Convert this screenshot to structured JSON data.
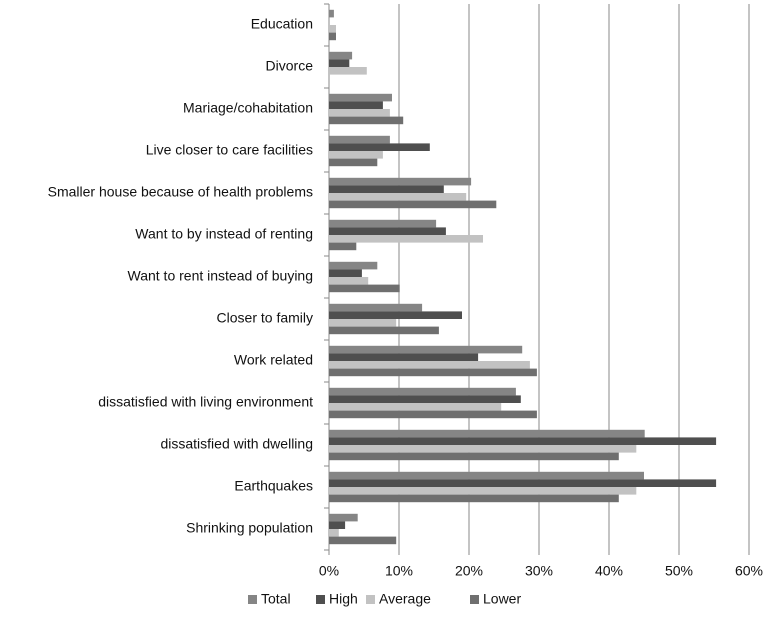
{
  "chart_data": {
    "type": "hbar",
    "categories": [
      "Education",
      "Divorce",
      "Mariage/cohabitation",
      "Live closer to care facilities",
      "Smaller house because of health problems",
      "Want to by instead of renting",
      "Want to rent instead of buying",
      "Closer to family",
      "Work related",
      "dissatisfied with living environment",
      "dissatisfied with dwelling",
      "Earthquakes",
      "Shrinking population"
    ],
    "series": [
      {
        "name": "Total",
        "color": "#858585",
        "values": [
          0.7,
          3.3,
          9.0,
          8.7,
          20.3,
          15.3,
          6.9,
          13.3,
          27.6,
          26.7,
          45.1,
          45.0,
          4.1
        ]
      },
      {
        "name": "High",
        "color": "#4f4f4f",
        "values": [
          0,
          2.9,
          7.7,
          14.4,
          16.4,
          16.7,
          4.7,
          19.0,
          21.3,
          27.4,
          55.3,
          55.3,
          2.3
        ]
      },
      {
        "name": "Average",
        "color": "#c2c2c2",
        "values": [
          1.0,
          5.4,
          8.7,
          7.7,
          19.6,
          22.0,
          5.6,
          9.6,
          28.7,
          24.6,
          43.9,
          43.9,
          1.4
        ]
      },
      {
        "name": "Lower",
        "color": "#6f6f6f",
        "values": [
          1.0,
          0,
          10.6,
          6.9,
          23.9,
          3.9,
          10.1,
          15.7,
          29.7,
          29.7,
          41.4,
          41.4,
          9.6
        ]
      }
    ],
    "xlim": [
      0,
      60
    ],
    "xticks": [
      {
        "value": 0,
        "label": "0%"
      },
      {
        "value": 10,
        "label": "10%"
      },
      {
        "value": 20,
        "label": "20%"
      },
      {
        "value": 30,
        "label": "30%"
      },
      {
        "value": 40,
        "label": "40%"
      },
      {
        "value": 50,
        "label": "50%"
      },
      {
        "value": 60,
        "label": "60%"
      }
    ],
    "grid": true,
    "legend": "bottom"
  }
}
